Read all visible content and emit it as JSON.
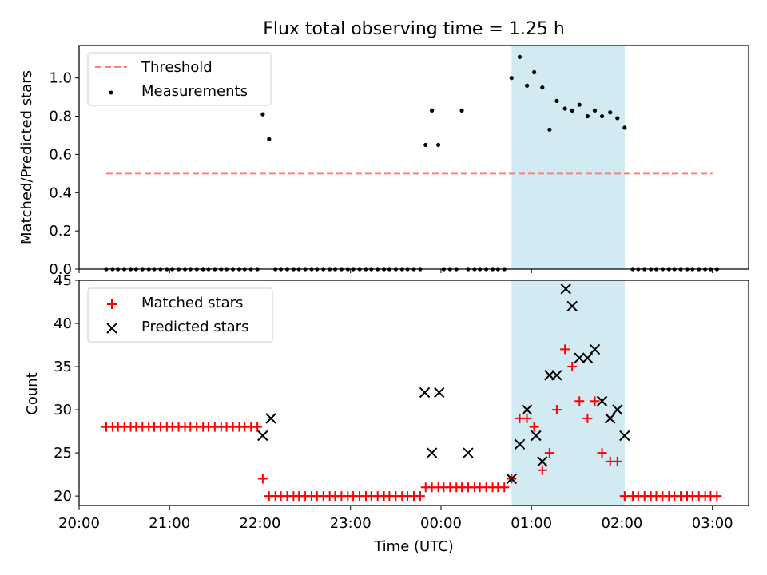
{
  "title": "Flux total observing time = 1.25 h",
  "colors": {
    "threshold": "#ff7f7f",
    "measurement": "#000000",
    "matched": "#ff0000",
    "predicted": "#000000",
    "span_fill": "#add8e6"
  },
  "chart_data": [
    {
      "type": "scatter",
      "ylabel": "Matched/Predicted stars",
      "xlim": [
        20.0,
        27.4
      ],
      "ylim": [
        0.0,
        1.17
      ],
      "yticks": [
        "0.0",
        "0.2",
        "0.4",
        "0.6",
        "0.8",
        "1.0"
      ],
      "ytick_values": [
        0.0,
        0.2,
        0.4,
        0.6,
        0.8,
        1.0
      ],
      "legend": {
        "position": "upper-left",
        "threshold_label": "Threshold",
        "measurements_label": "Measurements"
      },
      "threshold": {
        "y": 0.5,
        "x_start": 20.3,
        "x_end": 27.0
      },
      "shaded_span": [
        24.78,
        26.03
      ],
      "series": [
        {
          "name": "Measurements",
          "x": [
            20.3,
            20.37,
            20.43,
            20.5,
            20.57,
            20.63,
            20.7,
            20.77,
            20.83,
            20.9,
            20.97,
            21.03,
            21.1,
            21.17,
            21.23,
            21.3,
            21.37,
            21.43,
            21.5,
            21.57,
            21.63,
            21.7,
            21.77,
            21.83,
            21.9,
            21.97,
            22.03,
            22.1,
            22.17,
            22.23,
            22.3,
            22.37,
            22.43,
            22.5,
            22.57,
            22.63,
            22.7,
            22.77,
            22.83,
            22.9,
            22.97,
            23.03,
            23.1,
            23.17,
            23.23,
            23.3,
            23.37,
            23.43,
            23.5,
            23.57,
            23.63,
            23.7,
            23.77,
            23.83,
            23.9,
            23.97,
            24.03,
            24.1,
            24.17,
            24.23,
            24.3,
            24.37,
            24.43,
            24.5,
            24.57,
            24.63,
            24.7,
            24.78,
            24.87,
            24.95,
            25.03,
            25.12,
            25.2,
            25.28,
            25.37,
            25.45,
            25.53,
            25.62,
            25.7,
            25.78,
            25.87,
            25.95,
            26.03,
            26.12,
            26.18,
            26.25,
            26.32,
            26.38,
            26.45,
            26.52,
            26.58,
            26.65,
            26.72,
            26.78,
            26.85,
            26.92,
            26.98,
            27.05
          ],
          "y": [
            0,
            0,
            0,
            0,
            0,
            0,
            0,
            0,
            0,
            0,
            0,
            0,
            0,
            0,
            0,
            0,
            0,
            0,
            0,
            0,
            0,
            0,
            0,
            0,
            0,
            0,
            0.81,
            0.68,
            0,
            0,
            0,
            0,
            0,
            0,
            0,
            0,
            0,
            0,
            0,
            0,
            0,
            0,
            0,
            0,
            0,
            0,
            0,
            0,
            0,
            0,
            0,
            0,
            0,
            0.65,
            0.83,
            0.65,
            0,
            0,
            0,
            0.83,
            0,
            0,
            0,
            0,
            0,
            0,
            0,
            1.0,
            1.11,
            0.96,
            1.03,
            0.95,
            0.73,
            0.88,
            0.84,
            0.83,
            0.86,
            0.8,
            0.83,
            0.8,
            0.82,
            0.79,
            0.74,
            0,
            0,
            0,
            0,
            0,
            0,
            0,
            0,
            0,
            0,
            0,
            0,
            0,
            0,
            0
          ]
        }
      ]
    },
    {
      "type": "scatter",
      "ylabel": "Count",
      "xlabel": "Time (UTC)",
      "xlim": [
        20.0,
        27.4
      ],
      "ylim": [
        18.9,
        45.0
      ],
      "yticks": [
        "20",
        "25",
        "30",
        "35",
        "40",
        "45"
      ],
      "ytick_values": [
        20,
        25,
        30,
        35,
        40,
        45
      ],
      "xticks": [
        "20:00",
        "21:00",
        "22:00",
        "23:00",
        "00:00",
        "01:00",
        "02:00",
        "03:00"
      ],
      "xtick_values": [
        20,
        21,
        22,
        23,
        24,
        25,
        26,
        27
      ],
      "legend": {
        "position": "upper-left",
        "matched_label": "Matched stars",
        "predicted_label": "Predicted stars"
      },
      "shaded_span": [
        24.78,
        26.03
      ],
      "series": [
        {
          "name": "Matched stars",
          "x": [
            20.3,
            20.37,
            20.43,
            20.5,
            20.57,
            20.63,
            20.7,
            20.77,
            20.83,
            20.9,
            20.97,
            21.03,
            21.1,
            21.17,
            21.23,
            21.3,
            21.37,
            21.43,
            21.5,
            21.57,
            21.63,
            21.7,
            21.77,
            21.83,
            21.9,
            21.97,
            22.03,
            22.1,
            22.17,
            22.23,
            22.3,
            22.37,
            22.43,
            22.5,
            22.57,
            22.63,
            22.7,
            22.77,
            22.83,
            22.9,
            22.97,
            23.03,
            23.1,
            23.17,
            23.23,
            23.3,
            23.37,
            23.43,
            23.5,
            23.57,
            23.63,
            23.7,
            23.77,
            23.83,
            23.9,
            23.97,
            24.03,
            24.1,
            24.17,
            24.23,
            24.3,
            24.37,
            24.43,
            24.5,
            24.57,
            24.63,
            24.7,
            24.78,
            24.87,
            24.95,
            25.03,
            25.12,
            25.2,
            25.28,
            25.37,
            25.45,
            25.53,
            25.62,
            25.7,
            25.78,
            25.87,
            25.95,
            26.03,
            26.12,
            26.18,
            26.25,
            26.32,
            26.38,
            26.45,
            26.52,
            26.58,
            26.65,
            26.72,
            26.78,
            26.85,
            26.92,
            26.98,
            27.05
          ],
          "y": [
            28,
            28,
            28,
            28,
            28,
            28,
            28,
            28,
            28,
            28,
            28,
            28,
            28,
            28,
            28,
            28,
            28,
            28,
            28,
            28,
            28,
            28,
            28,
            28,
            28,
            28,
            22,
            20,
            20,
            20,
            20,
            20,
            20,
            20,
            20,
            20,
            20,
            20,
            20,
            20,
            20,
            20,
            20,
            20,
            20,
            20,
            20,
            20,
            20,
            20,
            20,
            20,
            20,
            21,
            21,
            21,
            21,
            21,
            21,
            21,
            21,
            21,
            21,
            21,
            21,
            21,
            21,
            22,
            29,
            29,
            28,
            23,
            25,
            30,
            37,
            35,
            31,
            29,
            31,
            25,
            24,
            24,
            20,
            20,
            20,
            20,
            20,
            20,
            20,
            20,
            20,
            20,
            20,
            20,
            20,
            20,
            20,
            20
          ]
        },
        {
          "name": "Predicted stars",
          "x": [
            22.03,
            22.12,
            23.82,
            23.9,
            23.98,
            24.3,
            24.78,
            24.87,
            24.95,
            25.05,
            25.12,
            25.2,
            25.28,
            25.38,
            25.45,
            25.53,
            25.62,
            25.7,
            25.78,
            25.87,
            25.95,
            26.03
          ],
          "y": [
            27,
            29,
            32,
            25,
            32,
            25,
            22,
            26,
            30,
            27,
            24,
            34,
            34,
            44,
            42,
            36,
            36,
            37,
            31,
            29,
            30,
            27
          ]
        }
      ]
    }
  ]
}
